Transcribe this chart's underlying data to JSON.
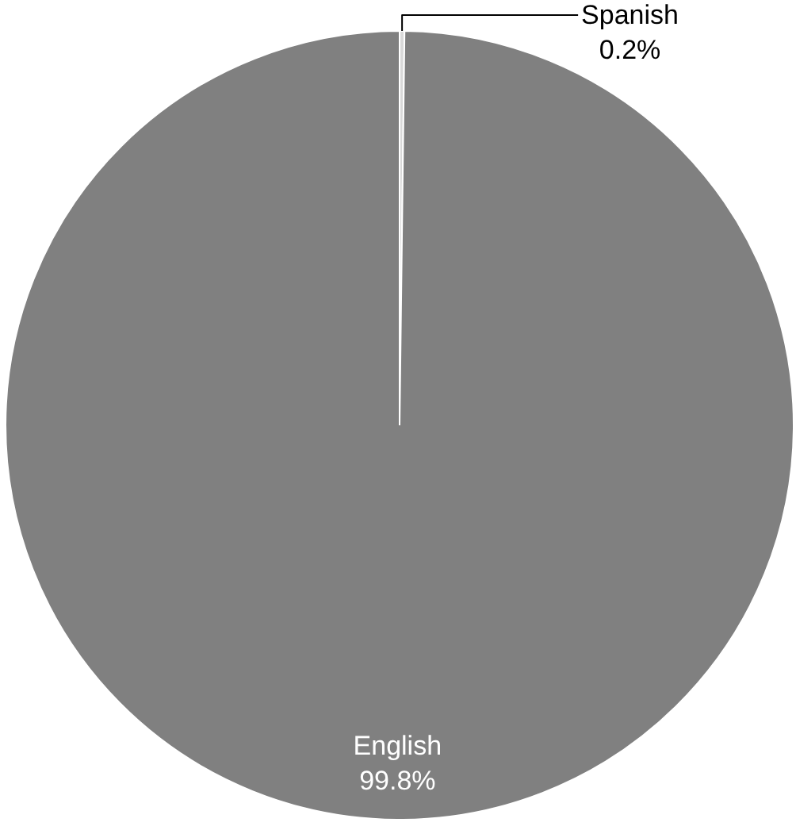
{
  "chart_data": {
    "type": "pie",
    "categories": [
      "Spanish",
      "English"
    ],
    "values": [
      0.2,
      99.8
    ],
    "colors": [
      "#d9d9d9",
      "#808080"
    ],
    "value_labels": [
      "0.2%",
      "99.8%"
    ]
  }
}
